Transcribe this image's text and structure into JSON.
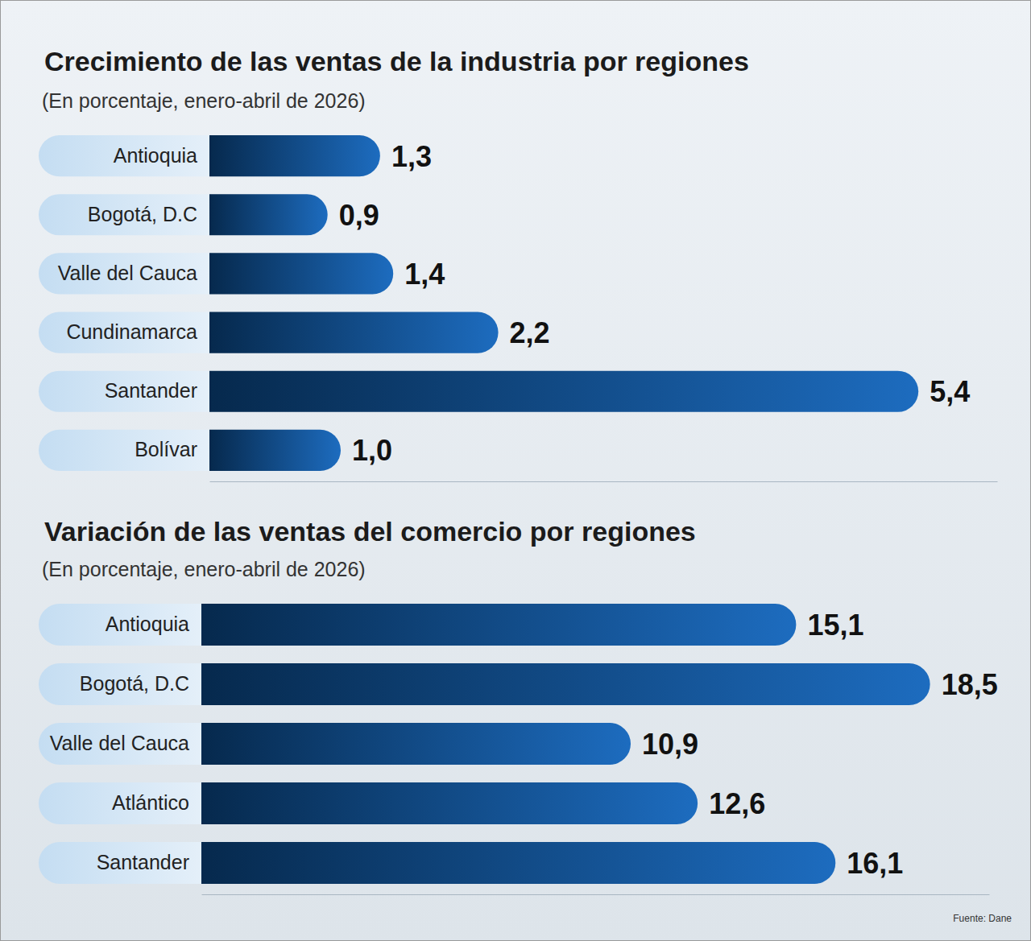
{
  "chart_data": [
    {
      "type": "bar",
      "orientation": "horizontal",
      "title": "Crecimiento de las ventas de la industria por regiones",
      "subtitle": "(En porcentaje, enero-abril de 2026)",
      "categories": [
        "Antioquia",
        "Bogotá, D.C",
        "Valle del Cauca",
        "Cundinamarca",
        "Santander",
        "Bolívar"
      ],
      "values": [
        1.3,
        0.9,
        1.4,
        2.2,
        5.4,
        1.0
      ],
      "value_labels": [
        "1,3",
        "0,9",
        "1,4",
        "2,2",
        "5,4",
        "1,0"
      ],
      "data_labels": true,
      "tick_labels": "y",
      "xlim": [
        0,
        6
      ],
      "xticks": [],
      "color": "#06294d"
    },
    {
      "type": "bar",
      "orientation": "horizontal",
      "title": "Variación de las ventas del comercio por regiones",
      "subtitle": "(En porcentaje, enero-abril de 2026)",
      "categories": [
        "Antioquia",
        "Bogotá, D.C",
        "Valle del Cauca",
        "Atlántico",
        "Santander"
      ],
      "values": [
        15.1,
        18.5,
        10.9,
        12.6,
        16.1
      ],
      "value_labels": [
        "15,1",
        "18,5",
        "10,9",
        "12,6",
        "16,1"
      ],
      "data_labels": true,
      "tick_labels": "y",
      "xlim": [
        0,
        20
      ],
      "xticks": [],
      "color": "#06294d",
      "annotations": [
        "Fuente: Dane"
      ]
    }
  ]
}
